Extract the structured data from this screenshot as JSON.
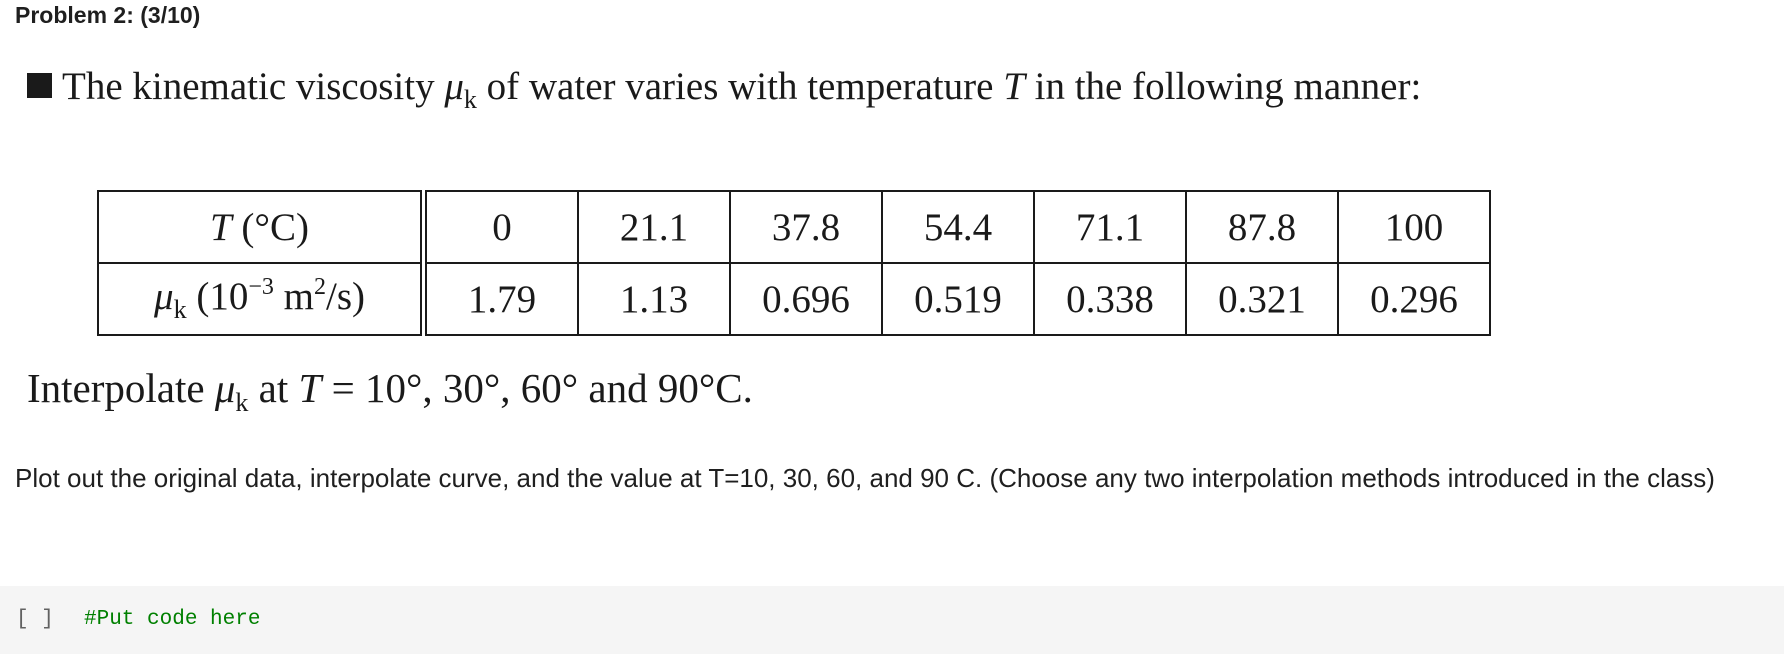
{
  "heading": "Problem 2: (3/10)",
  "problem": {
    "intro_before_mu": "The kinematic viscosity ",
    "mu_symbol": "μ",
    "mu_subscript": "k",
    "intro_middle": " of water varies with temperature ",
    "temp_symbol": "T",
    "intro_after": " in the following manner:",
    "table": {
      "row1_label_symbol": "T",
      "row1_label_unit": " (°C)",
      "row1_values": [
        "0",
        "21.1",
        "37.8",
        "54.4",
        "71.1",
        "87.8",
        "100"
      ],
      "row2_label_unit_open": " (10",
      "row2_label_exp": "−3",
      "row2_label_unit_mid": " m",
      "row2_label_sq": "2",
      "row2_label_unit_close": "/s)",
      "row2_values": [
        "1.79",
        "1.13",
        "0.696",
        "0.519",
        "0.338",
        "0.321",
        "0.296"
      ]
    },
    "interp_before": "Interpolate ",
    "interp_middle": " at ",
    "interp_after": " = 10°, 30°, 60° and 90°C."
  },
  "instructions": "Plot out the original data, interpolate curve, and the value at T=10, 30, 60, and 90 C. (Choose any two interpolation methods introduced in the class)",
  "code_cell": {
    "run_indicator": "[ ]",
    "code": "#Put code here"
  }
}
